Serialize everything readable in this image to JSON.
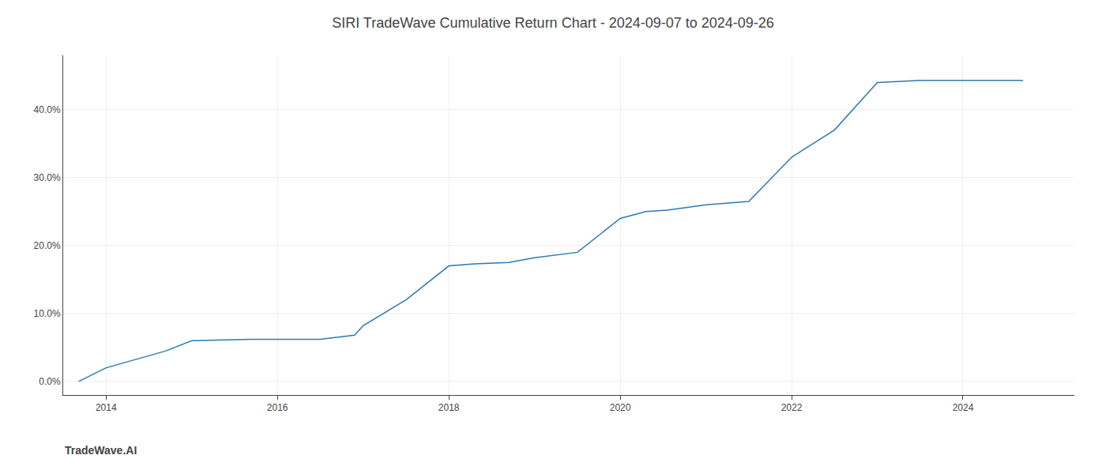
{
  "chart_data": {
    "type": "line",
    "title": "SIRI TradeWave Cumulative Return Chart - 2024-09-07 to 2024-09-26",
    "annotations": [
      "TradeWave.AI"
    ],
    "x": [
      2013.68,
      2014.0,
      2014.7,
      2015.0,
      2015.7,
      2016.0,
      2016.5,
      2016.9,
      2017.0,
      2017.5,
      2018.0,
      2018.3,
      2018.7,
      2019.0,
      2019.5,
      2020.0,
      2020.3,
      2020.55,
      2021.0,
      2021.5,
      2022.0,
      2022.5,
      2023.0,
      2023.5,
      2024.0,
      2024.7
    ],
    "values": [
      0.0,
      0.02,
      0.045,
      0.06,
      0.062,
      0.062,
      0.062,
      0.068,
      0.082,
      0.12,
      0.17,
      0.173,
      0.175,
      0.182,
      0.19,
      0.24,
      0.25,
      0.252,
      0.26,
      0.265,
      0.33,
      0.37,
      0.44,
      0.443,
      0.443,
      0.443
    ],
    "color": "#2a7ab5",
    "xlim": [
      2013.5,
      2025.3
    ],
    "xticks": [
      2014,
      2016,
      2018,
      2020,
      2022,
      2024
    ],
    "ylim": [
      -0.02,
      0.48
    ],
    "yticks": [
      {
        "value": 0.0,
        "label": "0.0%"
      },
      {
        "value": 0.1,
        "label": "10.0%"
      },
      {
        "value": 0.2,
        "label": "20.0%"
      },
      {
        "value": 0.3,
        "label": "30.0%"
      },
      {
        "value": 0.4,
        "label": "40.0%"
      }
    ],
    "grid": true
  }
}
